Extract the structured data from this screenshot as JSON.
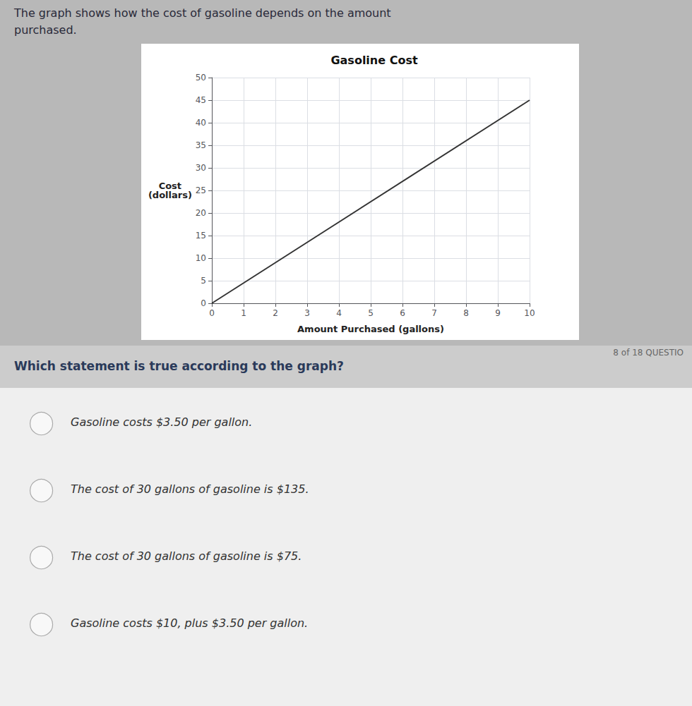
{
  "chart_data": {
    "type": "line",
    "title": "Gasoline Cost",
    "xlabel": "Amount Purchased (gallons)",
    "ylabel": "Cost\n(dollars)",
    "x": [
      0,
      10
    ],
    "values": [
      0,
      45
    ],
    "color": "#333333",
    "xlim": [
      0,
      10
    ],
    "ylim": [
      0,
      50
    ],
    "xticks": [
      0,
      1,
      2,
      3,
      4,
      5,
      6,
      7,
      8,
      9,
      10
    ],
    "yticks": [
      0,
      5,
      10,
      15,
      20,
      25,
      30,
      35,
      40,
      45,
      50
    ],
    "grid": true,
    "annotations": [
      "The graph shows how the cost of gasoline depends on the amount",
      "purchased.",
      "Which statement is true according to the graph?",
      "8 of 18 QUESTIO",
      "Gasoline costs $3.50 per gallon.",
      "The cost of 30 gallons of gasoline is $135.",
      "The cost of 30 gallons of gasoline is $75.",
      "Gasoline costs $10, plus $3.50 per gallon."
    ]
  }
}
